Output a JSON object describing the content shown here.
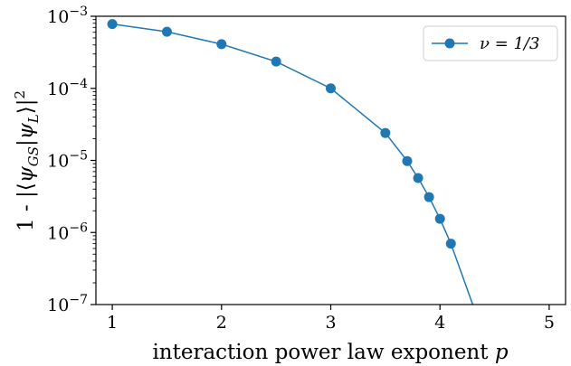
{
  "chart_data": {
    "type": "line",
    "xlabel": "interaction power law exponent p",
    "ylabel": "1 - |⟨ψGS|ψL⟩|²",
    "y_scale": "log",
    "xlim": [
      0.85,
      5.15
    ],
    "ylim": [
      1e-07,
      0.001
    ],
    "x_ticks": [
      1,
      2,
      3,
      4,
      5
    ],
    "x_tick_labels": [
      "1",
      "2",
      "3",
      "4",
      "5"
    ],
    "y_ticks": [
      1e-07,
      1e-06,
      1e-05,
      0.0001,
      0.001
    ],
    "y_tick_labels": [
      {
        "base": "10",
        "exp": "−7"
      },
      {
        "base": "10",
        "exp": "−6"
      },
      {
        "base": "10",
        "exp": "−5"
      },
      {
        "base": "10",
        "exp": "−4"
      },
      {
        "base": "10",
        "exp": "−3"
      }
    ],
    "grid": false,
    "legend_position": "top-right",
    "series": [
      {
        "name": "ν = 1/3",
        "color": "#1f77b4",
        "marker": "circle",
        "x": [
          1.0,
          1.5,
          2.0,
          2.5,
          3.0,
          3.5,
          3.7,
          3.8,
          3.9,
          4.0,
          4.1
        ],
        "y": [
          0.00078,
          0.00061,
          0.00041,
          0.000235,
          0.0001,
          2.4e-05,
          9.8e-06,
          5.7e-06,
          3.1e-06,
          1.55e-06,
          7e-07
        ],
        "line_extension": {
          "x": [
            4.1,
            4.3
          ],
          "y": [
            7e-07,
            1e-07
          ]
        }
      }
    ]
  }
}
